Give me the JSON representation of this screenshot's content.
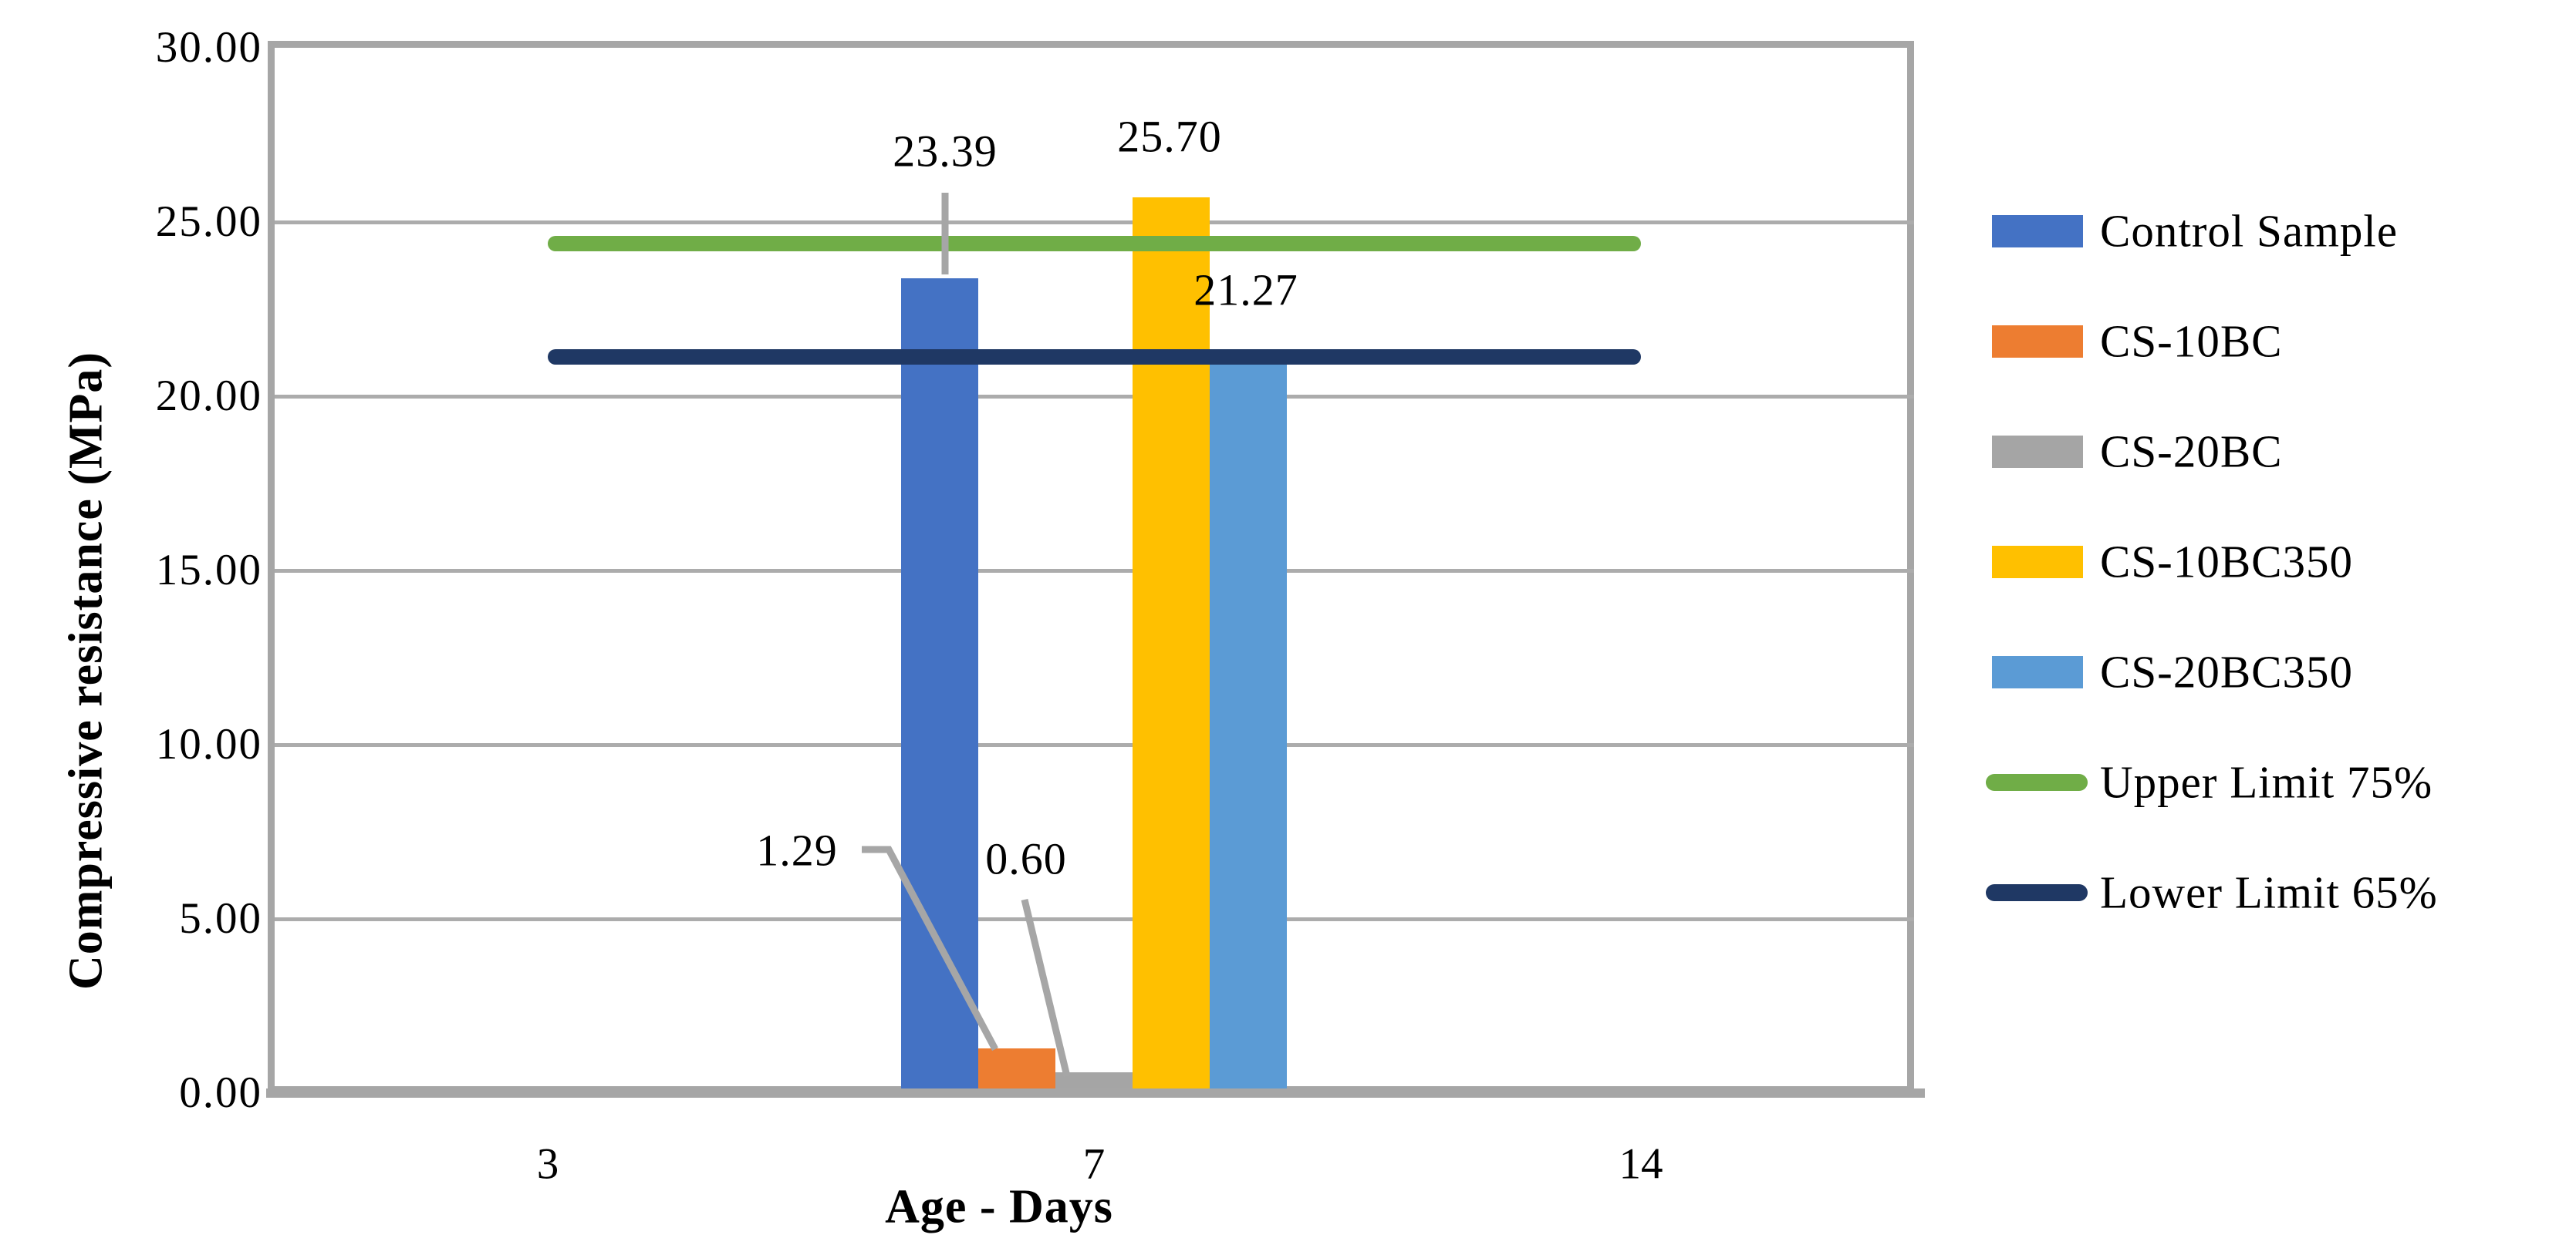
{
  "chart_data": {
    "type": "bar",
    "title": "",
    "xlabel": "Age - Days",
    "ylabel": "Compressive resistance (MPa)",
    "categories": [
      "3",
      "7",
      "14"
    ],
    "bar_category": "7",
    "y_tick_labels": [
      "30.00",
      "25.00",
      "20.00",
      "15.00",
      "10.00",
      "5.00",
      "0.00"
    ],
    "y_tick_values": [
      30,
      25,
      20,
      15,
      10,
      5,
      0
    ],
    "ylim": [
      0,
      30
    ],
    "grid": "horizontal gridlines on, vertical off",
    "legend_position": "right",
    "series": [
      {
        "name": "Control Sample",
        "color": "#4472C4",
        "category": "7",
        "value": 23.39,
        "data_label": "23.39"
      },
      {
        "name": "CS-10BC",
        "color": "#ED7D31",
        "category": "7",
        "value": 1.29,
        "data_label": "1.29"
      },
      {
        "name": "CS-20BC",
        "color": "#A5A5A5",
        "category": "7",
        "value": 0.6,
        "data_label": "0.60"
      },
      {
        "name": "CS-10BC350",
        "color": "#FFC000",
        "category": "7",
        "value": 25.7,
        "data_label": "25.70"
      },
      {
        "name": "CS-20BC350",
        "color": "#5B9BD5",
        "category": "7",
        "value": 21.27,
        "data_label": "21.27"
      }
    ],
    "lines": [
      {
        "name": "Upper Limit 75%",
        "color": "#70AD47",
        "value": 24.38,
        "x_span": [
          "3",
          "14"
        ]
      },
      {
        "name": "Lower Limit 65%",
        "color": "#1F3864",
        "value": 21.13,
        "x_span": [
          "3",
          "14"
        ]
      }
    ]
  },
  "legend": {
    "items": [
      {
        "label": "Control Sample",
        "color": "#4472C4",
        "swatch": "bar"
      },
      {
        "label": "CS-10BC",
        "color": "#ED7D31",
        "swatch": "bar"
      },
      {
        "label": "CS-20BC",
        "color": "#A5A5A5",
        "swatch": "bar"
      },
      {
        "label": "CS-10BC350",
        "color": "#FFC000",
        "swatch": "bar"
      },
      {
        "label": "CS-20BC350",
        "color": "#5B9BD5",
        "swatch": "bar"
      },
      {
        "label": "Upper Limit 75%",
        "color": "#70AD47",
        "swatch": "line"
      },
      {
        "label": "Lower Limit 65%",
        "color": "#1F3864",
        "swatch": "line"
      }
    ]
  },
  "colors": {
    "axis_and_border": "#A6A6A6",
    "gridline": "#ACACAC",
    "leader_line": "#A6A6A6",
    "text": "#000000",
    "background": "#FFFFFF"
  }
}
